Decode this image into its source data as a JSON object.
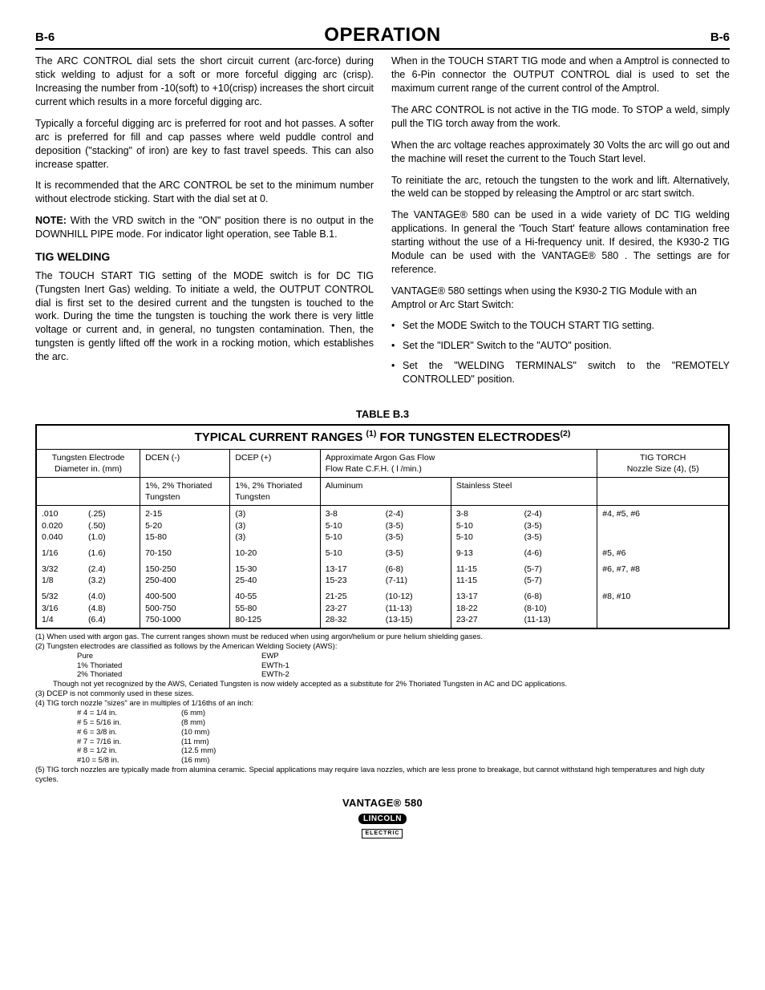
{
  "header": {
    "left": "B-6",
    "title": "OPERATION",
    "right": "B-6"
  },
  "left_col": {
    "p1": "The ARC CONTROL dial sets the short circuit current (arc-force) during stick welding to adjust for a soft or more forceful digging arc (crisp). Increasing the number from -10(soft) to +10(crisp) increases the short circuit current which results in a more forceful digging arc.",
    "p2": "Typically a forceful digging arc is preferred for root and hot passes. A softer arc is preferred for fill and cap passes where weld puddle control and deposition (\"stacking\" of iron) are key to fast travel speeds. This can also increase spatter.",
    "p3": "It is recommended that the ARC CONTROL be set to the minimum number without electrode sticking. Start with the dial set at 0.",
    "note_label": "NOTE:",
    "note_text": " With the VRD switch in the \"ON\" position there is no output in the DOWNHILL PIPE mode. For indicator light operation, see Table B.1.",
    "tig_head": "TIG WELDING",
    "p4": "The TOUCH START TIG setting of the MODE switch is for DC TIG (Tungsten Inert Gas) welding. To initiate a weld, the OUTPUT CONTROL dial is first set to the desired current and the tungsten is touched to the work. During the time the tungsten is touching the work there is very little voltage or current and, in general, no tungsten contamination. Then, the tungsten is gently lifted off the work in a rocking motion, which establishes the arc."
  },
  "right_col": {
    "p1": "When in the TOUCH START TIG mode and when a Amptrol is connected to the 6-Pin connector the OUTPUT CONTROL dial is used to set the maximum current range of the current control of the Amptrol.",
    "p2": "The ARC CONTROL is not active in the TIG mode. To STOP a weld, simply pull the TIG torch away from the work.",
    "p3": "When the arc voltage reaches approximately 30 Volts the arc will go out and the machine will reset the current to the Touch Start level.",
    "p4": "To reinitiate the arc, retouch the tungsten to the work and lift. Alternatively, the weld can be stopped by releasing the Amptrol or arc start switch.",
    "p5": "The VANTAGE® 580 can be used in a wide variety of DC TIG welding applications. In general the 'Touch Start' feature allows contamination free starting without the use of a Hi-frequency unit. If desired, the K930-2 TIG Module can be used with the VANTAGE® 580 . The settings are for reference.",
    "p6": "VANTAGE® 580 settings when using the K930-2 TIG Module with an Amptrol or Arc Start  Switch:",
    "b1": "Set the MODE Switch to the TOUCH START TIG setting.",
    "b2": "Set the \"IDLER\" Switch to the \"AUTO\" position.",
    "b3": "Set the \"WELDING TERMINALS\" switch to the \"REMOTELY CONTROLLED\" position."
  },
  "table": {
    "caption": "TABLE B.3",
    "title_pre": "TYPICAL CURRENT RANGES ",
    "title_sup1": "(1)",
    "title_mid": " FOR TUNGSTEN ELECTRODES",
    "title_sup2": "(2)",
    "h_electrode1": "Tungsten Electrode",
    "h_electrode2": "Diameter in. (mm)",
    "h_dcen": "DCEN (-)",
    "h_dcep": "DCEP (+)",
    "h_gas1": "Approximate Argon Gas Flow",
    "h_gas2": "Flow Rate C.F.H. ( l /min.)",
    "h_torch1": "TIG TORCH",
    "h_torch2": "Nozzle Size (4), (5)",
    "h_thor": "1%, 2% Thoriated Tungsten",
    "h_alum": "Aluminum",
    "h_ss": "Stainless Steel",
    "rows": [
      {
        "dia": [
          [
            ".010",
            "(.25)"
          ],
          [
            "0.020",
            "(.50)"
          ],
          [
            "0.040",
            "(1.0)"
          ]
        ],
        "dcen": [
          "2-15",
          "5-20",
          "15-80"
        ],
        "dcep": [
          "(3)",
          "(3)",
          "(3)"
        ],
        "al": [
          [
            "3-8",
            "(2-4)"
          ],
          [
            "5-10",
            "(3-5)"
          ],
          [
            "5-10",
            "(3-5)"
          ]
        ],
        "ss": [
          [
            "3-8",
            "(2-4)"
          ],
          [
            "5-10",
            "(3-5)"
          ],
          [
            "5-10",
            "(3-5)"
          ]
        ],
        "nozzle": "#4, #5, #6"
      },
      {
        "dia": [
          [
            "1/16",
            "(1.6)"
          ]
        ],
        "dcen": [
          "70-150"
        ],
        "dcep": [
          "10-20"
        ],
        "al": [
          [
            "5-10",
            "(3-5)"
          ]
        ],
        "ss": [
          [
            "9-13",
            "(4-6)"
          ]
        ],
        "nozzle": "#5, #6"
      },
      {
        "dia": [
          [
            "3/32",
            "(2.4)"
          ],
          [
            "1/8",
            "(3.2)"
          ]
        ],
        "dcen": [
          "150-250",
          "250-400"
        ],
        "dcep": [
          "15-30",
          "25-40"
        ],
        "al": [
          [
            "13-17",
            "(6-8)"
          ],
          [
            "15-23",
            "(7-11)"
          ]
        ],
        "ss": [
          [
            "11-15",
            "(5-7)"
          ],
          [
            "11-15",
            "(5-7)"
          ]
        ],
        "nozzle": "#6, #7, #8"
      },
      {
        "dia": [
          [
            "5/32",
            "(4.0)"
          ],
          [
            "3/16",
            "(4.8)"
          ],
          [
            "1/4",
            "(6.4)"
          ]
        ],
        "dcen": [
          "400-500",
          "500-750",
          "750-1000"
        ],
        "dcep": [
          "40-55",
          "55-80",
          "80-125"
        ],
        "al": [
          [
            "21-25",
            "(10-12)"
          ],
          [
            "23-27",
            "(11-13)"
          ],
          [
            "28-32",
            "(13-15)"
          ]
        ],
        "ss": [
          [
            "13-17",
            "(6-8)"
          ],
          [
            "18-22",
            "(8-10)"
          ],
          [
            "23-27",
            "(11-13)"
          ]
        ],
        "nozzle": "#8, #10"
      }
    ]
  },
  "footnotes": {
    "f1": "(1)  When used with argon gas.  The current ranges shown must be reduced when using argon/helium or pure helium shielding gases.",
    "f2": "(2) Tungsten electrodes are classified as follows by the American Welding Society (AWS):",
    "classes": [
      [
        "Pure",
        "EWP"
      ],
      [
        "1% Thoriated",
        "EWTh-1"
      ],
      [
        "2% Thoriated",
        "EWTh-2"
      ]
    ],
    "f2b": "Though not yet recognized by the AWS, Ceriated Tungsten is now widely accepted as a substitute for 2% Thoriated Tungsten in AC and DC applications.",
    "f3": "(3)  DCEP is not commonly used in these sizes.",
    "f4": "(4)  TIG torch nozzle \"sizes\" are in multiples of 1/16ths of an inch:",
    "sizes": [
      [
        "# 4 = 1/4 in.",
        "(6 mm)"
      ],
      [
        "# 5 = 5/16 in.",
        "(8 mm)"
      ],
      [
        "# 6 = 3/8 in.",
        "(10 mm)"
      ],
      [
        "# 7 = 7/16 in.",
        "(11 mm)"
      ],
      [
        "# 8 = 1/2 in.",
        "(12.5 mm)"
      ],
      [
        "#10 = 5/8 in.",
        "(16 mm)"
      ]
    ],
    "f5": "(5) TIG torch nozzles are typically made from alumina ceramic.  Special applications may require lava nozzles, which are less prone to breakage, but cannot withstand high temperatures and high duty cycles."
  },
  "footer": {
    "model": "VANTAGE® 580",
    "brand": "LINCOLN",
    "sub": "ELECTRIC"
  }
}
